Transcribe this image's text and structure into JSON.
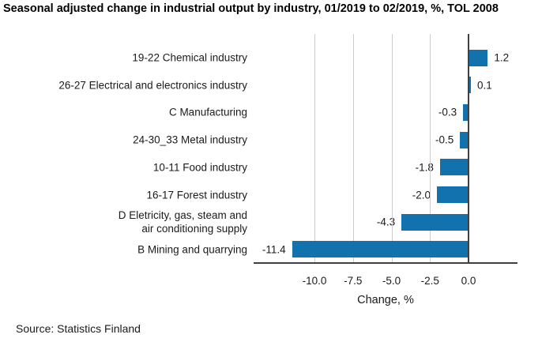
{
  "chart_data": {
    "type": "bar",
    "orientation": "horizontal",
    "title": "Seasonal adjusted change in industrial output by industry, 01/2019 to 02/2019, %, TOL 2008",
    "categories": [
      "19-22 Chemical industry",
      "26-27 Electrical and electronics industry",
      "C Manufacturing",
      "24-30_33 Metal industry",
      "10-11 Food industry",
      "16-17 Forest industry",
      "D Eletricity, gas, steam and\nair conditioning supply",
      "B Mining and quarrying"
    ],
    "values": [
      1.2,
      0.1,
      -0.3,
      -0.5,
      -1.8,
      -2.0,
      -4.3,
      -11.4
    ],
    "value_labels": [
      "1.2",
      "0.1",
      "-0.3",
      "-0.5",
      "-1.8",
      "-2.0",
      "-4.3",
      "-11.4"
    ],
    "xlabel": "Change, %",
    "xticks": [
      -10.0,
      -7.5,
      -5.0,
      -2.5,
      0.0
    ],
    "xtick_labels": [
      "-10.0",
      "-7.5",
      "-5.0",
      "-2.5",
      "0.0"
    ],
    "xlim": [
      -13.9,
      3.1
    ],
    "grid": true,
    "legend": "none",
    "bar_color": "#1272ae",
    "grid_color": "#cccccc",
    "axis_color": "#404040",
    "text_color": "#1a1a1a"
  },
  "source": "Source: Statistics Finland"
}
